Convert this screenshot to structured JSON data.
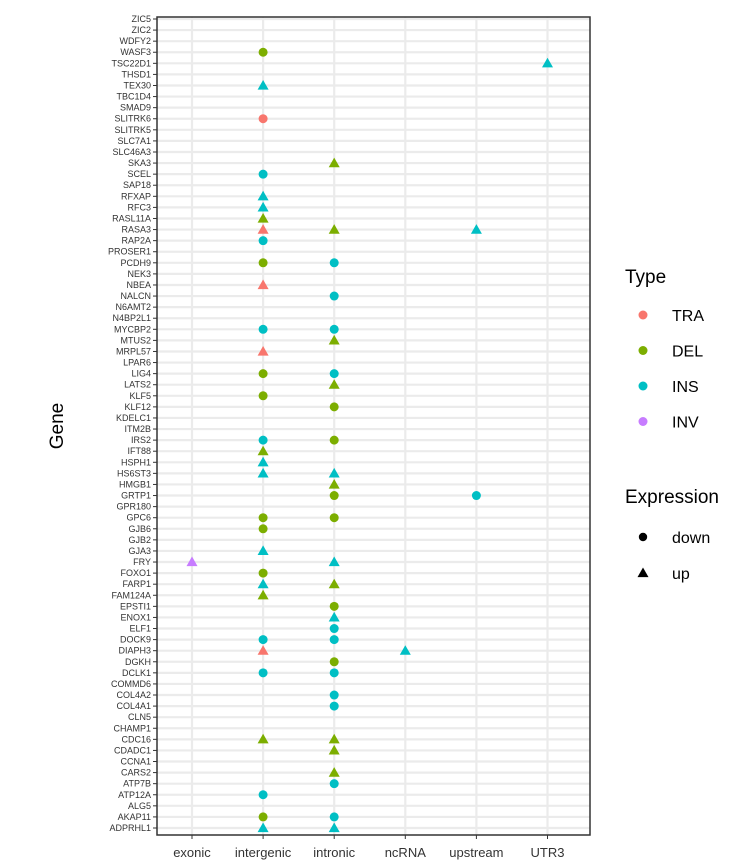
{
  "chart_data": {
    "type": "scatter",
    "ylabel": "Gene",
    "grid": true,
    "legend_placement": "right",
    "x_categories": [
      "exonic",
      "intergenic",
      "intronic",
      "ncRNA",
      "upstream",
      "UTR3"
    ],
    "genes": [
      "ADPRHL1",
      "AKAP11",
      "ALG5",
      "ATP12A",
      "ATP7B",
      "CARS2",
      "CCNA1",
      "CDADC1",
      "CDC16",
      "CHAMP1",
      "CLN5",
      "COL4A1",
      "COL4A2",
      "COMMD6",
      "DCLK1",
      "DGKH",
      "DIAPH3",
      "DOCK9",
      "ELF1",
      "ENOX1",
      "EPSTI1",
      "FAM124A",
      "FARP1",
      "FOXO1",
      "FRY",
      "GJA3",
      "GJB2",
      "GJB6",
      "GPC6",
      "GPR180",
      "GRTP1",
      "HMGB1",
      "HS6ST3",
      "HSPH1",
      "IFT88",
      "IRS2",
      "ITM2B",
      "KDELC1",
      "KLF12",
      "KLF5",
      "LATS2",
      "LIG4",
      "LPAR6",
      "MRPL57",
      "MTUS2",
      "MYCBP2",
      "N4BP2L1",
      "N6AMT2",
      "NALCN",
      "NBEA",
      "NEK3",
      "PCDH9",
      "PROSER1",
      "RAP2A",
      "RASA3",
      "RASL11A",
      "RFC3",
      "RFXAP",
      "SAP18",
      "SCEL",
      "SKA3",
      "SLC46A3",
      "SLC7A1",
      "SLITRK5",
      "SLITRK6",
      "SMAD9",
      "TBC1D4",
      "TEX30",
      "THSD1",
      "TSC22D1",
      "WASF3",
      "WDFY2",
      "ZIC2",
      "ZIC5"
    ],
    "legend_type": {
      "title": "Type",
      "entries": [
        {
          "label": "TRA",
          "color": "#F8766D"
        },
        {
          "label": "DEL",
          "color": "#7CAE00"
        },
        {
          "label": "INS",
          "color": "#00BFC4"
        },
        {
          "label": "INV",
          "color": "#C77CFF"
        }
      ]
    },
    "legend_expression": {
      "title": "Expression",
      "entries": [
        {
          "label": "down",
          "shape": "circle"
        },
        {
          "label": "up",
          "shape": "triangle"
        }
      ]
    },
    "points": [
      {
        "gene": "TSC22D1",
        "x": "UTR3",
        "type": "INS",
        "expression": "up"
      },
      {
        "gene": "WASF3",
        "x": "intergenic",
        "type": "DEL",
        "expression": "down"
      },
      {
        "gene": "TEX30",
        "x": "intergenic",
        "type": "INS",
        "expression": "up"
      },
      {
        "gene": "SLITRK6",
        "x": "intergenic",
        "type": "TRA",
        "expression": "down"
      },
      {
        "gene": "SKA3",
        "x": "intronic",
        "type": "DEL",
        "expression": "up"
      },
      {
        "gene": "SCEL",
        "x": "intergenic",
        "type": "INS",
        "expression": "down"
      },
      {
        "gene": "RFXAP",
        "x": "intergenic",
        "type": "INS",
        "expression": "up"
      },
      {
        "gene": "RFC3",
        "x": "intergenic",
        "type": "INS",
        "expression": "up"
      },
      {
        "gene": "RASL11A",
        "x": "intergenic",
        "type": "DEL",
        "expression": "up"
      },
      {
        "gene": "RASA3",
        "x": "intergenic",
        "type": "TRA",
        "expression": "up"
      },
      {
        "gene": "RASA3",
        "x": "intronic",
        "type": "DEL",
        "expression": "up"
      },
      {
        "gene": "RASA3",
        "x": "upstream",
        "type": "INS",
        "expression": "up"
      },
      {
        "gene": "RAP2A",
        "x": "intergenic",
        "type": "INS",
        "expression": "down"
      },
      {
        "gene": "PCDH9",
        "x": "intergenic",
        "type": "DEL",
        "expression": "down"
      },
      {
        "gene": "PCDH9",
        "x": "intronic",
        "type": "INS",
        "expression": "down"
      },
      {
        "gene": "NBEA",
        "x": "intergenic",
        "type": "TRA",
        "expression": "up"
      },
      {
        "gene": "NALCN",
        "x": "intronic",
        "type": "INS",
        "expression": "down"
      },
      {
        "gene": "MYCBP2",
        "x": "intergenic",
        "type": "INS",
        "expression": "down"
      },
      {
        "gene": "MYCBP2",
        "x": "intronic",
        "type": "INS",
        "expression": "down"
      },
      {
        "gene": "MTUS2",
        "x": "intronic",
        "type": "DEL",
        "expression": "up"
      },
      {
        "gene": "MRPL57",
        "x": "intergenic",
        "type": "TRA",
        "expression": "up"
      },
      {
        "gene": "LIG4",
        "x": "intergenic",
        "type": "DEL",
        "expression": "down"
      },
      {
        "gene": "LIG4",
        "x": "intronic",
        "type": "INS",
        "expression": "down"
      },
      {
        "gene": "LATS2",
        "x": "intronic",
        "type": "DEL",
        "expression": "up"
      },
      {
        "gene": "KLF5",
        "x": "intergenic",
        "type": "DEL",
        "expression": "down"
      },
      {
        "gene": "KLF12",
        "x": "intronic",
        "type": "DEL",
        "expression": "down"
      },
      {
        "gene": "IRS2",
        "x": "intergenic",
        "type": "INS",
        "expression": "down"
      },
      {
        "gene": "IRS2",
        "x": "intronic",
        "type": "DEL",
        "expression": "down"
      },
      {
        "gene": "IFT88",
        "x": "intergenic",
        "type": "DEL",
        "expression": "up"
      },
      {
        "gene": "HSPH1",
        "x": "intergenic",
        "type": "INS",
        "expression": "up"
      },
      {
        "gene": "HS6ST3",
        "x": "intergenic",
        "type": "INS",
        "expression": "up"
      },
      {
        "gene": "HS6ST3",
        "x": "intronic",
        "type": "INS",
        "expression": "up"
      },
      {
        "gene": "HMGB1",
        "x": "intronic",
        "type": "DEL",
        "expression": "up"
      },
      {
        "gene": "GRTP1",
        "x": "intronic",
        "type": "DEL",
        "expression": "down"
      },
      {
        "gene": "GRTP1",
        "x": "upstream",
        "type": "INS",
        "expression": "down"
      },
      {
        "gene": "GPC6",
        "x": "intergenic",
        "type": "DEL",
        "expression": "down"
      },
      {
        "gene": "GPC6",
        "x": "intronic",
        "type": "DEL",
        "expression": "down"
      },
      {
        "gene": "GJB6",
        "x": "intergenic",
        "type": "DEL",
        "expression": "down"
      },
      {
        "gene": "GJA3",
        "x": "intergenic",
        "type": "INS",
        "expression": "up"
      },
      {
        "gene": "FRY",
        "x": "exonic",
        "type": "INV",
        "expression": "up"
      },
      {
        "gene": "FRY",
        "x": "intronic",
        "type": "INS",
        "expression": "up"
      },
      {
        "gene": "FOXO1",
        "x": "intergenic",
        "type": "DEL",
        "expression": "down"
      },
      {
        "gene": "FARP1",
        "x": "intergenic",
        "type": "INS",
        "expression": "up"
      },
      {
        "gene": "FARP1",
        "x": "intronic",
        "type": "DEL",
        "expression": "up"
      },
      {
        "gene": "FAM124A",
        "x": "intergenic",
        "type": "DEL",
        "expression": "up"
      },
      {
        "gene": "EPSTI1",
        "x": "intronic",
        "type": "DEL",
        "expression": "down"
      },
      {
        "gene": "ENOX1",
        "x": "intronic",
        "type": "INS",
        "expression": "up"
      },
      {
        "gene": "ELF1",
        "x": "intronic",
        "type": "INS",
        "expression": "down"
      },
      {
        "gene": "DOCK9",
        "x": "intergenic",
        "type": "INS",
        "expression": "down"
      },
      {
        "gene": "DOCK9",
        "x": "intronic",
        "type": "INS",
        "expression": "down"
      },
      {
        "gene": "DIAPH3",
        "x": "intergenic",
        "type": "TRA",
        "expression": "up"
      },
      {
        "gene": "DIAPH3",
        "x": "ncRNA",
        "type": "INS",
        "expression": "up"
      },
      {
        "gene": "DGKH",
        "x": "intronic",
        "type": "DEL",
        "expression": "down"
      },
      {
        "gene": "DCLK1",
        "x": "intergenic",
        "type": "INS",
        "expression": "down"
      },
      {
        "gene": "DCLK1",
        "x": "intronic",
        "type": "INS",
        "expression": "down"
      },
      {
        "gene": "COL4A2",
        "x": "intronic",
        "type": "INS",
        "expression": "down"
      },
      {
        "gene": "COL4A1",
        "x": "intronic",
        "type": "INS",
        "expression": "down"
      },
      {
        "gene": "CDC16",
        "x": "intergenic",
        "type": "DEL",
        "expression": "up"
      },
      {
        "gene": "CDC16",
        "x": "intronic",
        "type": "DEL",
        "expression": "up"
      },
      {
        "gene": "CDADC1",
        "x": "intronic",
        "type": "DEL",
        "expression": "up"
      },
      {
        "gene": "CARS2",
        "x": "intronic",
        "type": "DEL",
        "expression": "up"
      },
      {
        "gene": "ATP7B",
        "x": "intronic",
        "type": "INS",
        "expression": "down"
      },
      {
        "gene": "ATP12A",
        "x": "intergenic",
        "type": "INS",
        "expression": "down"
      },
      {
        "gene": "AKAP11",
        "x": "intergenic",
        "type": "DEL",
        "expression": "down"
      },
      {
        "gene": "AKAP11",
        "x": "intronic",
        "type": "INS",
        "expression": "down"
      },
      {
        "gene": "ADPRHL1",
        "x": "intergenic",
        "type": "INS",
        "expression": "up"
      },
      {
        "gene": "ADPRHL1",
        "x": "intronic",
        "type": "INS",
        "expression": "up"
      }
    ]
  }
}
